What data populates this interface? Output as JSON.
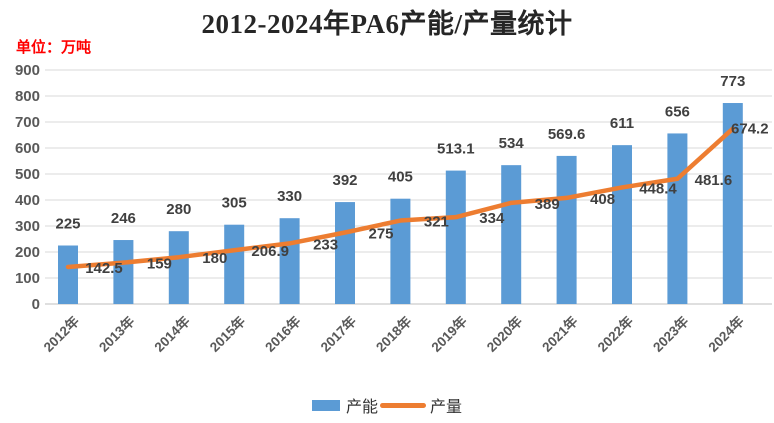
{
  "chart_data": {
    "type": "bar",
    "subtype": "bar-with-line-overlay",
    "title": "2012-2024年PA6产能/产量统计",
    "unit_label": "单位：万吨",
    "categories": [
      "2012年",
      "2013年",
      "2014年",
      "2015年",
      "2016年",
      "2017年",
      "2018年",
      "2019年",
      "2020年",
      "2021年",
      "2022年",
      "2023年",
      "2024年"
    ],
    "series": [
      {
        "name": "产能",
        "type": "bar",
        "color": "#5B9BD5",
        "values": [
          225,
          246,
          280,
          305,
          330,
          392,
          405,
          513.1,
          534,
          569.6,
          611,
          656,
          773
        ]
      },
      {
        "name": "产量",
        "type": "line",
        "color": "#ED7D31",
        "values": [
          142.5,
          159,
          180,
          206.9,
          233,
          275,
          321,
          334,
          389,
          408,
          448.4,
          481.6,
          674.2
        ]
      }
    ],
    "ylim": [
      0,
      900
    ],
    "ytick_step": 100,
    "grid": "horizontal",
    "legend_position": "bottom",
    "styles": {
      "axis_text_color": "#595959",
      "data_label_color": "#404040",
      "gridline_color": "#D9D9D9",
      "axis_line_color": "#BFBFBF",
      "title_color": "#262626",
      "unit_color": "#FF0000"
    }
  }
}
